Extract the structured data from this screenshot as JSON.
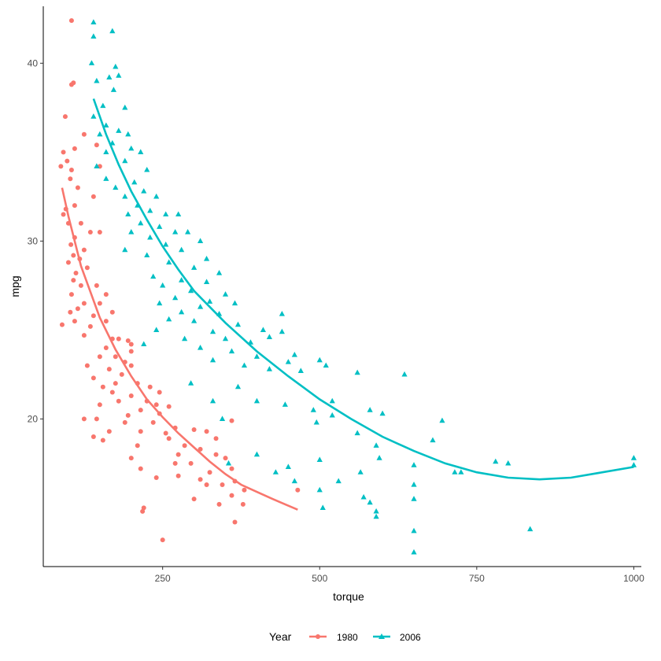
{
  "chart_data": {
    "type": "scatter",
    "title": "",
    "xlabel": "torque",
    "ylabel": "mpg",
    "xlim": [
      60,
      1012
    ],
    "ylim": [
      11.7,
      43.2
    ],
    "x_ticks": [
      250,
      500,
      750,
      1000
    ],
    "x_tick_labels": [
      "250",
      "500",
      "750",
      "1000"
    ],
    "y_ticks": [
      20,
      30,
      40
    ],
    "y_tick_labels": [
      "20",
      "30",
      "40"
    ],
    "grid": false,
    "legend": {
      "title": "Year",
      "position": "bottom"
    },
    "series": [
      {
        "name": "1980",
        "color": "#F8766D",
        "marker": "circle",
        "points": [
          [
            105,
            42.4
          ],
          [
            108,
            38.9
          ],
          [
            105,
            38.8
          ],
          [
            95,
            37.0
          ],
          [
            125,
            36.0
          ],
          [
            110,
            35.2
          ],
          [
            92,
            35.0
          ],
          [
            98,
            34.5
          ],
          [
            88,
            34.2
          ],
          [
            105,
            34.0
          ],
          [
            103,
            33.5
          ],
          [
            145,
            35.4
          ],
          [
            150,
            34.2
          ],
          [
            115,
            33.0
          ],
          [
            140,
            32.5
          ],
          [
            110,
            32.0
          ],
          [
            96,
            31.8
          ],
          [
            92,
            31.5
          ],
          [
            100,
            31.0
          ],
          [
            120,
            31.0
          ],
          [
            135,
            30.5
          ],
          [
            150,
            30.5
          ],
          [
            110,
            30.2
          ],
          [
            104,
            29.8
          ],
          [
            125,
            29.5
          ],
          [
            108,
            29.2
          ],
          [
            118,
            29.0
          ],
          [
            100,
            28.8
          ],
          [
            130,
            28.5
          ],
          [
            112,
            28.2
          ],
          [
            108,
            27.8
          ],
          [
            120,
            27.5
          ],
          [
            145,
            27.5
          ],
          [
            160,
            27.0
          ],
          [
            105,
            27.0
          ],
          [
            125,
            26.5
          ],
          [
            150,
            26.5
          ],
          [
            115,
            26.2
          ],
          [
            103,
            26.0
          ],
          [
            140,
            25.8
          ],
          [
            170,
            26.0
          ],
          [
            110,
            25.5
          ],
          [
            160,
            25.5
          ],
          [
            90,
            25.3
          ],
          [
            135,
            25.2
          ],
          [
            125,
            24.7
          ],
          [
            170,
            24.5
          ],
          [
            180,
            24.5
          ],
          [
            195,
            24.4
          ],
          [
            200,
            24.2
          ],
          [
            160,
            24.0
          ],
          [
            200,
            23.8
          ],
          [
            150,
            23.5
          ],
          [
            175,
            23.5
          ],
          [
            190,
            23.2
          ],
          [
            130,
            23.0
          ],
          [
            200,
            23.0
          ],
          [
            165,
            22.8
          ],
          [
            185,
            22.5
          ],
          [
            140,
            22.3
          ],
          [
            175,
            22.0
          ],
          [
            210,
            22.0
          ],
          [
            155,
            21.8
          ],
          [
            230,
            21.8
          ],
          [
            170,
            21.5
          ],
          [
            245,
            21.5
          ],
          [
            200,
            21.3
          ],
          [
            180,
            21.0
          ],
          [
            225,
            21.0
          ],
          [
            150,
            20.8
          ],
          [
            240,
            20.8
          ],
          [
            260,
            20.7
          ],
          [
            215,
            20.5
          ],
          [
            195,
            20.2
          ],
          [
            245,
            20.3
          ],
          [
            125,
            20.0
          ],
          [
            145,
            20.0
          ],
          [
            190,
            19.8
          ],
          [
            235,
            19.8
          ],
          [
            360,
            19.9
          ],
          [
            270,
            19.5
          ],
          [
            300,
            19.4
          ],
          [
            165,
            19.3
          ],
          [
            215,
            19.3
          ],
          [
            255,
            19.2
          ],
          [
            320,
            19.3
          ],
          [
            140,
            19.0
          ],
          [
            260,
            18.9
          ],
          [
            335,
            18.9
          ],
          [
            155,
            18.8
          ],
          [
            210,
            18.5
          ],
          [
            285,
            18.5
          ],
          [
            310,
            18.3
          ],
          [
            275,
            18.0
          ],
          [
            335,
            18.0
          ],
          [
            200,
            17.8
          ],
          [
            350,
            17.8
          ],
          [
            270,
            17.5
          ],
          [
            295,
            17.5
          ],
          [
            360,
            17.2
          ],
          [
            215,
            17.2
          ],
          [
            325,
            17.0
          ],
          [
            275,
            16.8
          ],
          [
            240,
            16.7
          ],
          [
            310,
            16.6
          ],
          [
            365,
            16.5
          ],
          [
            320,
            16.3
          ],
          [
            345,
            16.3
          ],
          [
            380,
            16.0
          ],
          [
            465,
            16.0
          ],
          [
            360,
            15.7
          ],
          [
            300,
            15.5
          ],
          [
            340,
            15.2
          ],
          [
            378,
            15.2
          ],
          [
            220,
            15.0
          ],
          [
            218,
            14.8
          ],
          [
            365,
            14.2
          ],
          [
            250,
            13.2
          ]
        ],
        "trend": [
          [
            90,
            33.0
          ],
          [
            100,
            31.4
          ],
          [
            120,
            28.6
          ],
          [
            150,
            25.7
          ],
          [
            175,
            23.9
          ],
          [
            200,
            22.4
          ],
          [
            225,
            21.1
          ],
          [
            250,
            20.1
          ],
          [
            275,
            19.2
          ],
          [
            300,
            18.4
          ],
          [
            325,
            17.6
          ],
          [
            350,
            16.9
          ],
          [
            375,
            16.3
          ],
          [
            400,
            15.9
          ],
          [
            425,
            15.5
          ],
          [
            445,
            15.2
          ],
          [
            465,
            14.9
          ]
        ]
      },
      {
        "name": "2006",
        "color": "#00BFC4",
        "marker": "triangle",
        "points": [
          [
            140,
            42.3
          ],
          [
            170,
            41.8
          ],
          [
            140,
            41.5
          ],
          [
            137,
            40.0
          ],
          [
            175,
            39.8
          ],
          [
            165,
            39.2
          ],
          [
            145,
            39.0
          ],
          [
            180,
            39.3
          ],
          [
            172,
            38.5
          ],
          [
            155,
            37.6
          ],
          [
            190,
            37.5
          ],
          [
            140,
            37.0
          ],
          [
            160,
            36.5
          ],
          [
            180,
            36.2
          ],
          [
            150,
            36.0
          ],
          [
            195,
            36.0
          ],
          [
            170,
            35.5
          ],
          [
            200,
            35.2
          ],
          [
            160,
            35.0
          ],
          [
            215,
            35.0
          ],
          [
            190,
            34.5
          ],
          [
            145,
            34.2
          ],
          [
            225,
            34.0
          ],
          [
            160,
            33.5
          ],
          [
            205,
            33.3
          ],
          [
            175,
            33.0
          ],
          [
            220,
            32.8
          ],
          [
            240,
            32.5
          ],
          [
            190,
            32.5
          ],
          [
            210,
            32.0
          ],
          [
            230,
            31.7
          ],
          [
            255,
            31.5
          ],
          [
            195,
            31.5
          ],
          [
            275,
            31.5
          ],
          [
            215,
            31.0
          ],
          [
            245,
            30.8
          ],
          [
            270,
            30.5
          ],
          [
            200,
            30.5
          ],
          [
            290,
            30.5
          ],
          [
            230,
            30.2
          ],
          [
            310,
            30.0
          ],
          [
            255,
            29.8
          ],
          [
            190,
            29.5
          ],
          [
            280,
            29.5
          ],
          [
            225,
            29.2
          ],
          [
            320,
            29.0
          ],
          [
            260,
            28.8
          ],
          [
            300,
            28.5
          ],
          [
            340,
            28.2
          ],
          [
            235,
            28.0
          ],
          [
            280,
            27.8
          ],
          [
            320,
            27.7
          ],
          [
            250,
            27.5
          ],
          [
            295,
            27.2
          ],
          [
            350,
            27.0
          ],
          [
            270,
            26.8
          ],
          [
            325,
            26.6
          ],
          [
            245,
            26.5
          ],
          [
            310,
            26.3
          ],
          [
            365,
            26.5
          ],
          [
            280,
            26.0
          ],
          [
            340,
            25.9
          ],
          [
            440,
            25.9
          ],
          [
            260,
            25.6
          ],
          [
            300,
            25.5
          ],
          [
            370,
            25.3
          ],
          [
            410,
            25.0
          ],
          [
            240,
            25.0
          ],
          [
            330,
            24.9
          ],
          [
            440,
            24.9
          ],
          [
            350,
            24.5
          ],
          [
            285,
            24.5
          ],
          [
            390,
            24.3
          ],
          [
            420,
            24.6
          ],
          [
            220,
            24.2
          ],
          [
            310,
            24.0
          ],
          [
            360,
            23.8
          ],
          [
            460,
            23.6
          ],
          [
            400,
            23.5
          ],
          [
            330,
            23.3
          ],
          [
            500,
            23.3
          ],
          [
            510,
            23.0
          ],
          [
            450,
            23.2
          ],
          [
            380,
            23.0
          ],
          [
            420,
            22.8
          ],
          [
            470,
            22.7
          ],
          [
            560,
            22.6
          ],
          [
            635,
            22.5
          ],
          [
            295,
            22.0
          ],
          [
            370,
            21.8
          ],
          [
            330,
            21.0
          ],
          [
            400,
            21.0
          ],
          [
            520,
            21.0
          ],
          [
            445,
            20.8
          ],
          [
            490,
            20.5
          ],
          [
            580,
            20.5
          ],
          [
            600,
            20.3
          ],
          [
            520,
            20.2
          ],
          [
            345,
            20.0
          ],
          [
            495,
            19.8
          ],
          [
            695,
            19.9
          ],
          [
            560,
            19.2
          ],
          [
            680,
            18.8
          ],
          [
            590,
            18.5
          ],
          [
            400,
            18.0
          ],
          [
            500,
            17.7
          ],
          [
            595,
            17.8
          ],
          [
            780,
            17.6
          ],
          [
            355,
            17.5
          ],
          [
            650,
            17.4
          ],
          [
            450,
            17.3
          ],
          [
            800,
            17.5
          ],
          [
            430,
            17.0
          ],
          [
            715,
            17.0
          ],
          [
            725,
            17.0
          ],
          [
            565,
            17.0
          ],
          [
            1000,
            17.4
          ],
          [
            1000,
            17.8
          ],
          [
            460,
            16.5
          ],
          [
            530,
            16.5
          ],
          [
            650,
            16.3
          ],
          [
            500,
            16.0
          ],
          [
            570,
            15.6
          ],
          [
            650,
            15.5
          ],
          [
            580,
            15.3
          ],
          [
            505,
            15.0
          ],
          [
            590,
            14.8
          ],
          [
            590,
            14.5
          ],
          [
            835,
            13.8
          ],
          [
            650,
            13.7
          ],
          [
            650,
            12.5
          ]
        ],
        "trend": [
          [
            140,
            38.0
          ],
          [
            160,
            36.0
          ],
          [
            180,
            34.3
          ],
          [
            200,
            32.8
          ],
          [
            225,
            31.2
          ],
          [
            250,
            29.7
          ],
          [
            275,
            28.4
          ],
          [
            300,
            27.2
          ],
          [
            350,
            25.4
          ],
          [
            400,
            23.8
          ],
          [
            450,
            22.4
          ],
          [
            500,
            21.1
          ],
          [
            550,
            20.0
          ],
          [
            600,
            19.0
          ],
          [
            650,
            18.2
          ],
          [
            700,
            17.5
          ],
          [
            750,
            17.0
          ],
          [
            800,
            16.7
          ],
          [
            850,
            16.6
          ],
          [
            900,
            16.7
          ],
          [
            950,
            17.0
          ],
          [
            1000,
            17.3
          ]
        ]
      }
    ]
  }
}
